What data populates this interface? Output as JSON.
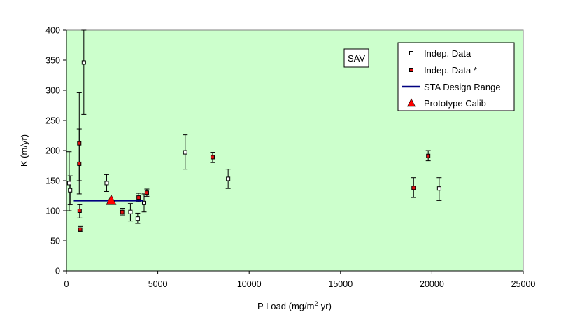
{
  "chart_data": {
    "type": "scatter",
    "title": "",
    "xlabel": {
      "main": "P Load (mg/m",
      "sup": "2",
      "tail": "-yr)"
    },
    "ylabel": "K (m/yr)",
    "xlim": [
      0,
      25000
    ],
    "ylim": [
      0,
      400
    ],
    "x_ticks": [
      0,
      5000,
      10000,
      15000,
      20000,
      25000
    ],
    "y_ticks": [
      0,
      50,
      100,
      150,
      200,
      250,
      300,
      350,
      400
    ],
    "plot_background": "#ccffcc",
    "grid": false,
    "annotation": "SAV",
    "legend_position": "top-right",
    "series": [
      {
        "name": "Indep. Data",
        "marker": "open-square",
        "color": "#000000",
        "points": [
          {
            "x": 150,
            "y": 146,
            "lo": 100,
            "hi": 198
          },
          {
            "x": 200,
            "y": 134,
            "lo": 110,
            "hi": 158
          },
          {
            "x": 950,
            "y": 346,
            "lo": 260,
            "hi": 400
          },
          {
            "x": 2200,
            "y": 146,
            "lo": 132,
            "hi": 160
          },
          {
            "x": 3500,
            "y": 98,
            "lo": 83,
            "hi": 112
          },
          {
            "x": 3900,
            "y": 87,
            "lo": 79,
            "hi": 96
          },
          {
            "x": 4250,
            "y": 113,
            "lo": 98,
            "hi": 128
          },
          {
            "x": 6500,
            "y": 197,
            "lo": 169,
            "hi": 226
          },
          {
            "x": 8850,
            "y": 153,
            "lo": 137,
            "hi": 169
          },
          {
            "x": 20400,
            "y": 137,
            "lo": 117,
            "hi": 155
          }
        ]
      },
      {
        "name": "Indep. Data *",
        "marker": "filled-square",
        "color": "#e01010",
        "points": [
          {
            "x": 700,
            "y": 212,
            "lo": 150,
            "hi": 296
          },
          {
            "x": 700,
            "y": 178,
            "lo": 128,
            "hi": 236
          },
          {
            "x": 720,
            "y": 100,
            "lo": 88,
            "hi": 110
          },
          {
            "x": 750,
            "y": 69,
            "lo": 65,
            "hi": 74
          },
          {
            "x": 3050,
            "y": 98,
            "lo": 93,
            "hi": 104
          },
          {
            "x": 3950,
            "y": 122,
            "lo": 115,
            "hi": 129
          },
          {
            "x": 4400,
            "y": 130,
            "lo": 124,
            "hi": 136
          },
          {
            "x": 8000,
            "y": 189,
            "lo": 180,
            "hi": 197
          },
          {
            "x": 19000,
            "y": 138,
            "lo": 122,
            "hi": 155
          },
          {
            "x": 19800,
            "y": 191,
            "lo": 183,
            "hi": 200
          }
        ]
      },
      {
        "name": "STA Design Range",
        "marker": "line",
        "color": "#000080",
        "x": [
          400,
          4200
        ],
        "y": [
          117,
          117
        ]
      },
      {
        "name": "Prototype Calib",
        "marker": "triangle",
        "color": "#ff0000",
        "x": [
          2450
        ],
        "y": [
          117
        ]
      }
    ]
  }
}
